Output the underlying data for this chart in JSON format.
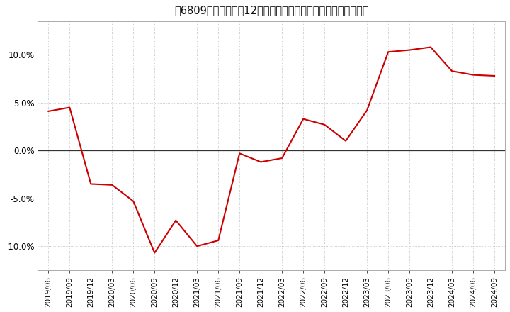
{
  "title": "[栉] 売上高の12か月移動合計の対前年同期増減率の推移",
  "title_bracket_num": "6809",
  "title_text": "売上高の12か月移動合計の対前年同期増減率の推移",
  "dates": [
    "2019/06",
    "2019/09",
    "2019/12",
    "2020/03",
    "2020/06",
    "2020/09",
    "2020/12",
    "2021/03",
    "2021/06",
    "2021/09",
    "2021/12",
    "2022/03",
    "2022/06",
    "2022/09",
    "2022/12",
    "2023/03",
    "2023/06",
    "2023/09",
    "2023/12",
    "2024/03",
    "2024/06",
    "2024/09"
  ],
  "values": [
    4.1,
    4.5,
    -3.5,
    -3.6,
    -5.3,
    -10.7,
    -7.3,
    -10.0,
    -9.4,
    -0.3,
    -1.2,
    -0.8,
    3.3,
    2.7,
    1.0,
    4.2,
    10.3,
    10.5,
    10.8,
    8.3,
    7.9,
    7.8
  ],
  "line_color": "#cc0000",
  "background_color": "#ffffff",
  "plot_bg_color": "#ffffff",
  "grid_color": "#bbbbbb",
  "zero_line_color": "#333333",
  "ylim": [
    -12.5,
    13.5
  ],
  "yticks": [
    -10.0,
    -5.0,
    0.0,
    5.0,
    10.0
  ],
  "title_fontsize": 10.5,
  "tick_fontsize": 7.5,
  "ytick_fontsize": 8.5
}
